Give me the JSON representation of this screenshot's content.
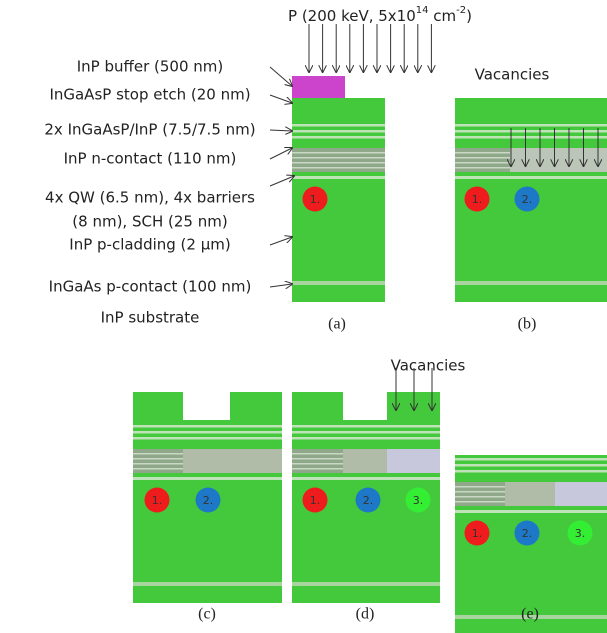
{
  "implant_label": {
    "prefix": "P (200 keV, 5x10",
    "exp1": "14",
    "mid": " cm",
    "exp2": "-2",
    "suffix": ")"
  },
  "layer_labels": [
    "InP buffer (500 nm)",
    "InGaAsP stop etch (20 nm)",
    "2x InGaAsP/InP (7.5/7.5 nm)",
    "InP n-contact (110 nm)",
    [
      "4x QW (6.5 nm), 4x barriers",
      "(8 nm), SCH (25 nm)"
    ],
    "InP p-cladding (2 μm)",
    "InGaAs p-contact (100 nm)",
    "InP substrate"
  ],
  "vacancies_labels": [
    "Vacancies",
    "Vacancies"
  ],
  "panels": [
    {
      "label": "(a)",
      "markers": [
        "1."
      ]
    },
    {
      "label": "(b)",
      "markers": [
        "1.",
        "2."
      ]
    },
    {
      "label": "(c)",
      "markers": [
        "1.",
        "2."
      ]
    },
    {
      "label": "(d)",
      "markers": [
        "1.",
        "2.",
        "3."
      ]
    },
    {
      "label": "(e)",
      "markers": [
        "1.",
        "2.",
        "3."
      ]
    }
  ]
}
